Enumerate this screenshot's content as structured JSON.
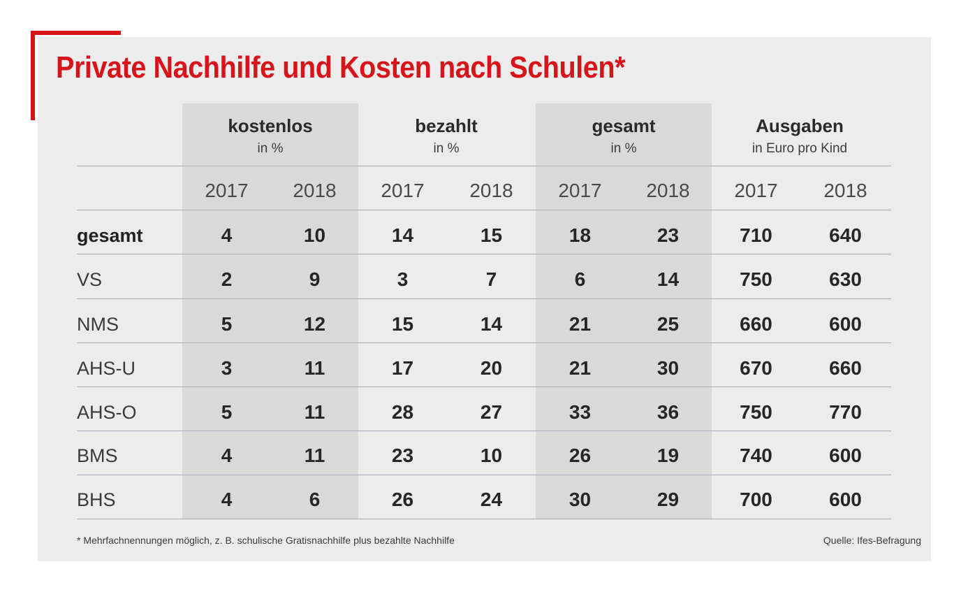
{
  "title": "Private Nachhilfe und Kosten nach Schulen*",
  "chart_data": {
    "type": "table",
    "column_groups": [
      {
        "name": "kostenlos",
        "unit": "in %"
      },
      {
        "name": "bezahlt",
        "unit": "in %"
      },
      {
        "name": "gesamt",
        "unit": "in %"
      },
      {
        "name": "Ausgaben",
        "unit": "in Euro pro Kind"
      }
    ],
    "years": [
      "2017",
      "2018"
    ],
    "rows": [
      {
        "label": "gesamt",
        "values": [
          4,
          10,
          14,
          15,
          18,
          23,
          710,
          640
        ]
      },
      {
        "label": "VS",
        "values": [
          2,
          9,
          3,
          7,
          6,
          14,
          750,
          630
        ]
      },
      {
        "label": "NMS",
        "values": [
          5,
          12,
          15,
          14,
          21,
          25,
          660,
          600
        ]
      },
      {
        "label": "AHS-U",
        "values": [
          3,
          11,
          17,
          20,
          21,
          30,
          670,
          660
        ]
      },
      {
        "label": "AHS-O",
        "values": [
          5,
          11,
          28,
          27,
          33,
          36,
          750,
          770
        ]
      },
      {
        "label": "BMS",
        "values": [
          4,
          11,
          23,
          10,
          26,
          19,
          740,
          600
        ]
      },
      {
        "label": "BHS",
        "values": [
          4,
          6,
          26,
          24,
          30,
          29,
          700,
          600
        ]
      }
    ]
  },
  "footnote": "* Mehrfachnennungen möglich, z. B. schulische Gratisnachhilfe plus bezahlte Nachhilfe",
  "source": "Quelle: Ifes-Befragung",
  "colors": {
    "accent": "#d7141a",
    "panel": "#ececec",
    "band": "#d9d9d9",
    "rule": "#a9a9b5"
  }
}
